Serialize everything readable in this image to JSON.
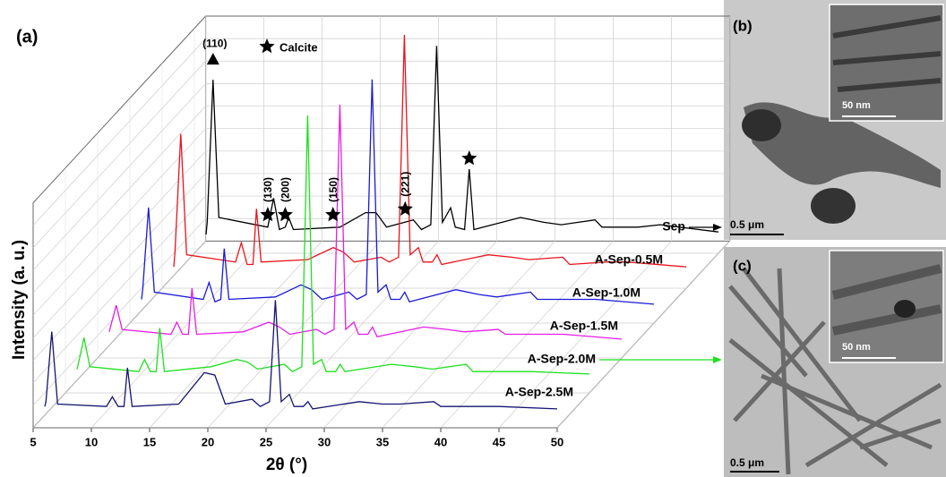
{
  "chart_data": {
    "type": "waterfall-line",
    "panel_label": "(a)",
    "xlabel": "2θ (°)",
    "ylabel": "Intensity (a. u.)",
    "xlim": [
      5,
      50
    ],
    "xticks": [
      5,
      10,
      15,
      20,
      25,
      30,
      35,
      40,
      45,
      50
    ],
    "grid": true,
    "x": [
      6,
      6.1,
      6.6,
      7.1,
      11.3,
      11.8,
      12.3,
      12.8,
      13.1,
      13.5,
      17.5,
      19.7,
      20.6,
      21.5,
      23.8,
      24.5,
      25.3,
      25.8,
      26.3,
      27.0,
      27.4,
      28.2,
      28.6,
      29.0,
      33,
      35,
      36.5,
      39.4,
      40,
      43.1,
      45,
      50
    ],
    "series": [
      {
        "name": "Sep",
        "color": "#000000",
        "values": [
          3,
          8,
          67,
          10,
          6,
          18,
          5,
          6,
          10,
          5,
          6,
          12,
          12,
          6,
          9,
          5,
          7,
          81,
          8,
          14,
          6,
          5,
          30,
          5,
          10,
          8,
          7,
          9,
          6,
          6,
          7,
          4
        ]
      },
      {
        "name": "A-Sep-0.5M",
        "color": "#e8141b",
        "values": [
          4,
          10,
          59,
          9,
          6,
          14,
          5,
          5,
          28,
          6,
          7,
          12,
          10,
          6,
          8,
          6,
          8,
          100,
          9,
          12,
          6,
          6,
          9,
          5,
          9,
          8,
          7,
          8,
          5,
          6,
          6,
          4
        ]
      },
      {
        "name": "A-Sep-1.0M",
        "color": "#1a1ad6",
        "values": [
          5,
          9,
          43,
          8,
          5,
          12,
          4,
          5,
          26,
          5,
          6,
          11,
          9,
          5,
          8,
          5,
          7,
          96,
          8,
          11,
          5,
          5,
          8,
          4,
          9,
          7,
          6,
          8,
          5,
          5,
          5,
          3
        ]
      },
      {
        "name": "A-Sep-1.5M",
        "color": "#e51ee5",
        "values": [
          6,
          8,
          17,
          7,
          5,
          10,
          5,
          5,
          24,
          5,
          6,
          10,
          8,
          5,
          7,
          5,
          7,
          100,
          7,
          10,
          5,
          5,
          8,
          4,
          8,
          7,
          6,
          7,
          5,
          5,
          5,
          3
        ]
      },
      {
        "name": "A-Sep-2.0M",
        "color": "#1fe01f",
        "values": [
          5,
          7,
          18,
          6,
          4,
          9,
          4,
          4,
          22,
          4,
          6,
          9,
          8,
          5,
          7,
          4,
          6,
          110,
          7,
          9,
          4,
          4,
          7,
          4,
          7,
          6,
          5,
          7,
          4,
          4,
          4,
          3
        ]
      },
      {
        "name": "A-Sep-2.5M",
        "color": "#141470",
        "values": [
          4,
          6,
          35,
          5,
          4,
          8,
          4,
          4,
          20,
          4,
          5,
          18,
          17,
          5,
          7,
          4,
          6,
          48,
          6,
          9,
          4,
          4,
          6,
          3,
          6,
          5,
          5,
          6,
          4,
          4,
          4,
          3
        ]
      }
    ],
    "peak_labels": [
      {
        "label": "(110)",
        "x": 6.6
      },
      {
        "label": "(130)",
        "x": 11.3
      },
      {
        "label": "(200)",
        "x": 12.8
      },
      {
        "label": "(150)",
        "x": 16.9
      },
      {
        "label": "(221)",
        "x": 23.1
      }
    ],
    "calcite_label": "Calcite",
    "calcite_peaks": [
      11.3,
      12.8,
      16.9,
      23.1,
      28.6
    ]
  },
  "tem_panels": [
    {
      "label": "(b)",
      "scale_bar": "0.5 μm",
      "inset_scale_bar": "50 nm"
    },
    {
      "label": "(c)",
      "scale_bar": "0.5 μm",
      "inset_scale_bar": "50 nm"
    }
  ]
}
